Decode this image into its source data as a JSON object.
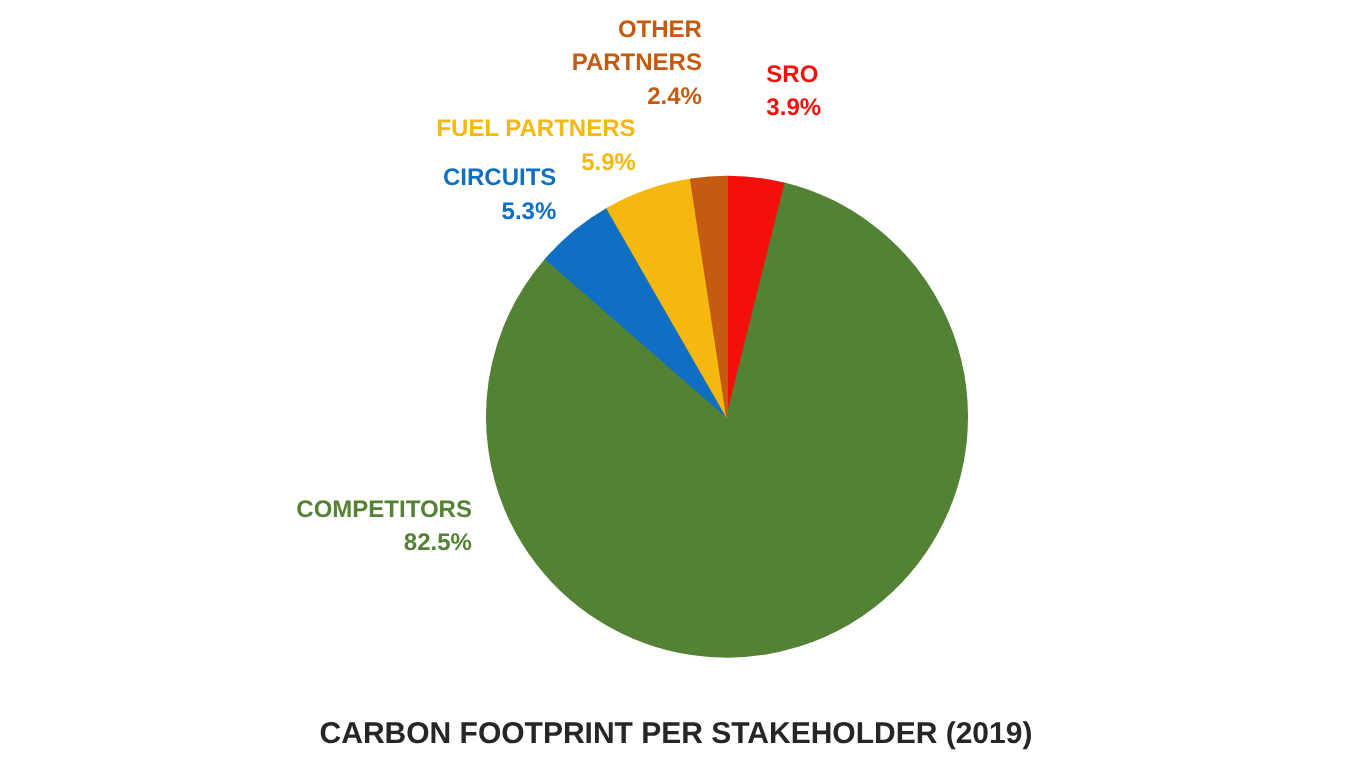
{
  "chart_data": {
    "type": "pie",
    "title": "CARBON FOOTPRINT PER STAKEHOLDER (2019)",
    "categories": [
      "SRO",
      "COMPETITORS",
      "CIRCUITS",
      "FUEL PARTNERS",
      "OTHER PARTNERS"
    ],
    "values": [
      3.9,
      82.5,
      5.3,
      5.9,
      2.4
    ],
    "value_labels": [
      "3.9%",
      "82.5%",
      "5.3%",
      "5.9%",
      "2.4%"
    ],
    "colors": [
      "#f50f0a",
      "#548235",
      "#0f6fc2",
      "#f5b80f",
      "#c55a11"
    ],
    "legend": false
  }
}
